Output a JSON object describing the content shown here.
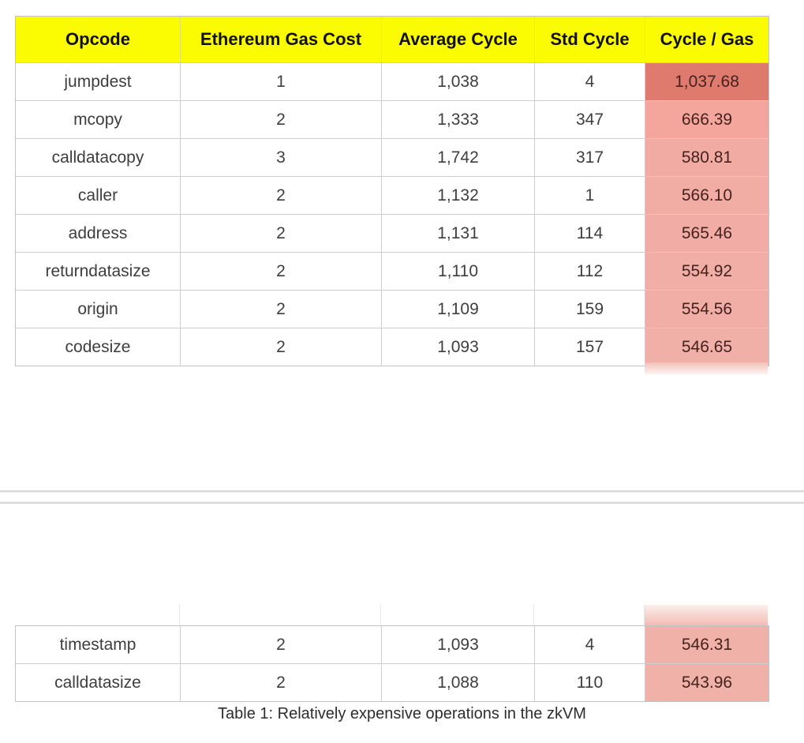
{
  "caption": "Table 1: Relatively expensive operations in the zkVM",
  "columns": [
    "Opcode",
    "Ethereum Gas Cost",
    "Average Cycle",
    "Std Cycle",
    "Cycle / Gas"
  ],
  "colors": {
    "header_bg": "#fbfb02",
    "header_text": "#121200",
    "grid": "#cdcdcd",
    "body_text": "#3e3e3e",
    "cycle_gas_text": "#45221e"
  },
  "tables": [
    {
      "container": "opcode-table-page1-body",
      "rows": [
        {
          "opcode": "jumpdest",
          "gas": "1",
          "avg": "1,038",
          "std": "4",
          "cycle_per_gas": "1,037.68",
          "cycle_per_gas_bg": "#df7a6f"
        },
        {
          "opcode": "mcopy",
          "gas": "2",
          "avg": "1,333",
          "std": "347",
          "cycle_per_gas": "666.39",
          "cycle_per_gas_bg": "#f4a69d"
        },
        {
          "opcode": "calldatacopy",
          "gas": "3",
          "avg": "1,742",
          "std": "317",
          "cycle_per_gas": "580.81",
          "cycle_per_gas_bg": "#f2aba3"
        },
        {
          "opcode": "caller",
          "gas": "2",
          "avg": "1,132",
          "std": "1",
          "cycle_per_gas": "566.10",
          "cycle_per_gas_bg": "#f1aca4"
        },
        {
          "opcode": "address",
          "gas": "2",
          "avg": "1,131",
          "std": "114",
          "cycle_per_gas": "565.46",
          "cycle_per_gas_bg": "#f1ada5"
        },
        {
          "opcode": "returndatasize",
          "gas": "2",
          "avg": "1,110",
          "std": "112",
          "cycle_per_gas": "554.92",
          "cycle_per_gas_bg": "#f1aea7"
        },
        {
          "opcode": "origin",
          "gas": "2",
          "avg": "1,109",
          "std": "159",
          "cycle_per_gas": "554.56",
          "cycle_per_gas_bg": "#f1aea7"
        },
        {
          "opcode": "codesize",
          "gas": "2",
          "avg": "1,093",
          "std": "157",
          "cycle_per_gas": "546.65",
          "cycle_per_gas_bg": "#f0b0a8"
        }
      ]
    },
    {
      "container": "opcode-table-page2-body",
      "rows": [
        {
          "opcode": "timestamp",
          "gas": "2",
          "avg": "1,093",
          "std": "4",
          "cycle_per_gas": "546.31",
          "cycle_per_gas_bg": "#f0b1a9"
        },
        {
          "opcode": "calldatasize",
          "gas": "2",
          "avg": "1,088",
          "std": "110",
          "cycle_per_gas": "543.96",
          "cycle_per_gas_bg": "#f0b1a9"
        }
      ]
    }
  ]
}
